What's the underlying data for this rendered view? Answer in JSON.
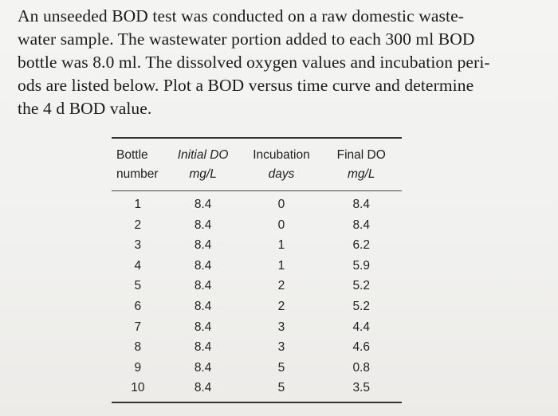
{
  "problem_lines": [
    "An unseeded BOD test was conducted on a raw domestic waste-",
    "water sample. The wastewater portion added to each 300 ml BOD",
    "bottle was 8.0 ml. The dissolved oxygen values and incubation peri-",
    "ods are listed below. Plot a BOD versus time curve and determine",
    "the 4 d BOD value."
  ],
  "table": {
    "headers": [
      {
        "top": "Bottle",
        "bottom": "number"
      },
      {
        "top": "Initial DO",
        "bottom": "mg/L"
      },
      {
        "top": "Incubation",
        "bottom": "days"
      },
      {
        "top": "Final DO",
        "bottom": "mg/L"
      }
    ],
    "rows": [
      [
        "1",
        "8.4",
        "0",
        "8.4"
      ],
      [
        "2",
        "8.4",
        "0",
        "8.4"
      ],
      [
        "3",
        "8.4",
        "1",
        "6.2"
      ],
      [
        "4",
        "8.4",
        "1",
        "5.9"
      ],
      [
        "5",
        "8.4",
        "2",
        "5.2"
      ],
      [
        "6",
        "8.4",
        "2",
        "5.2"
      ],
      [
        "7",
        "8.4",
        "3",
        "4.4"
      ],
      [
        "8",
        "8.4",
        "3",
        "4.6"
      ],
      [
        "9",
        "8.4",
        "5",
        "0.8"
      ],
      [
        "10",
        "8.4",
        "5",
        "3.5"
      ]
    ]
  }
}
